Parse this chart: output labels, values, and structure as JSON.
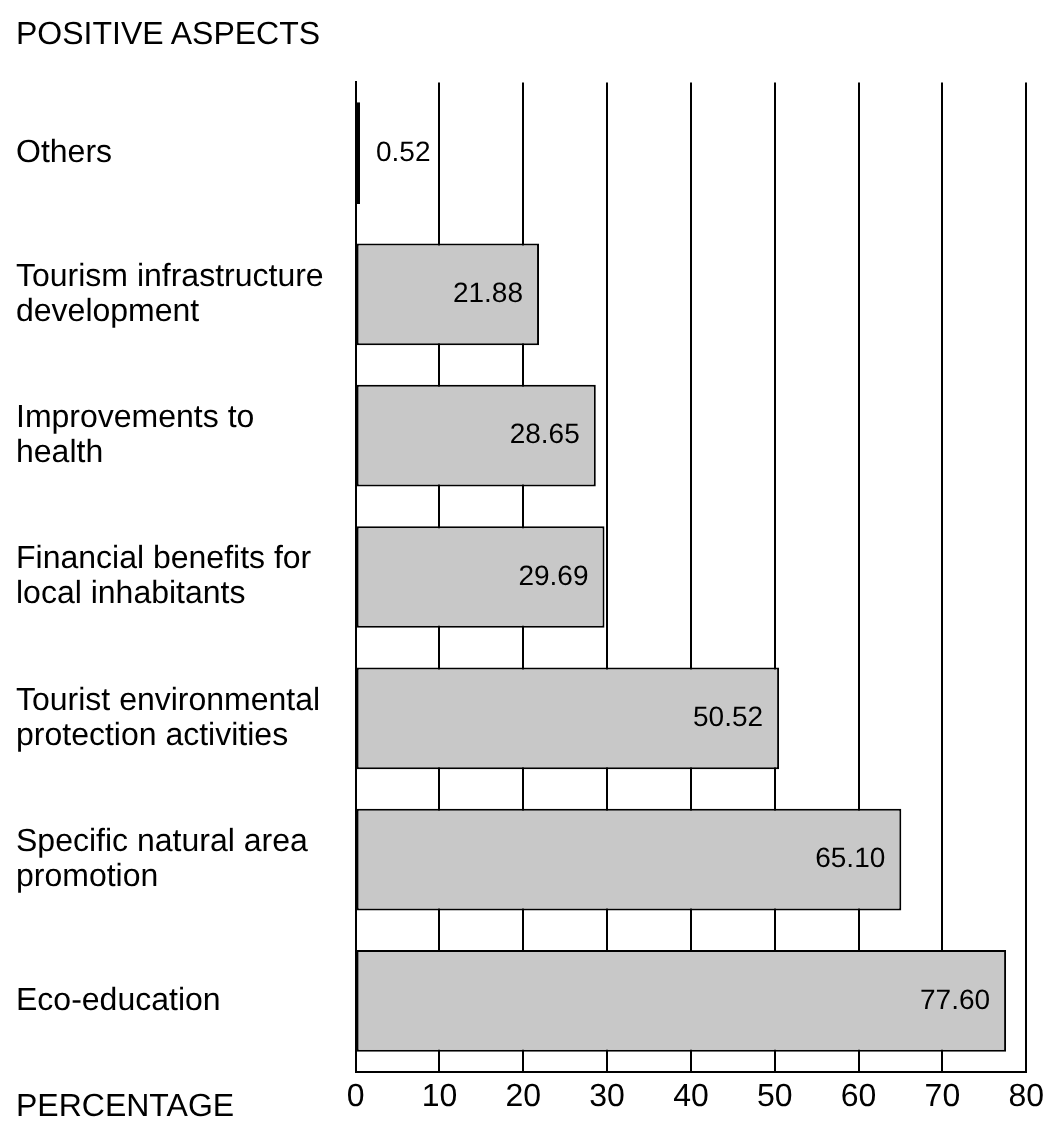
{
  "chart_data": {
    "type": "bar",
    "orientation": "horizontal",
    "title": "POSITIVE ASPECTS",
    "xlabel": "PERCENTAGE",
    "categories": [
      "Others",
      "Tourism infrastructure development",
      "Improvements to health",
      "Financial benefits for local inhabitants",
      "Tourist environmental protection activities",
      "Specific natural area promotion",
      "Eco-education"
    ],
    "values": [
      0.52,
      21.88,
      28.65,
      29.69,
      50.52,
      65.1,
      77.6
    ],
    "value_labels": [
      "0.52",
      "21.88",
      "28.65",
      "29.69",
      "50.52",
      "65.10",
      "77.60"
    ],
    "colors": [
      "#000000",
      "#c8c8c8",
      "#c8c8c8",
      "#c8c8c8",
      "#c8c8c8",
      "#c8c8c8",
      "#c8c8c8"
    ],
    "xlim": [
      0,
      80
    ],
    "xticks": [
      0,
      10,
      20,
      30,
      40,
      50,
      60,
      70,
      80
    ],
    "grid": "x",
    "legend": false
  }
}
